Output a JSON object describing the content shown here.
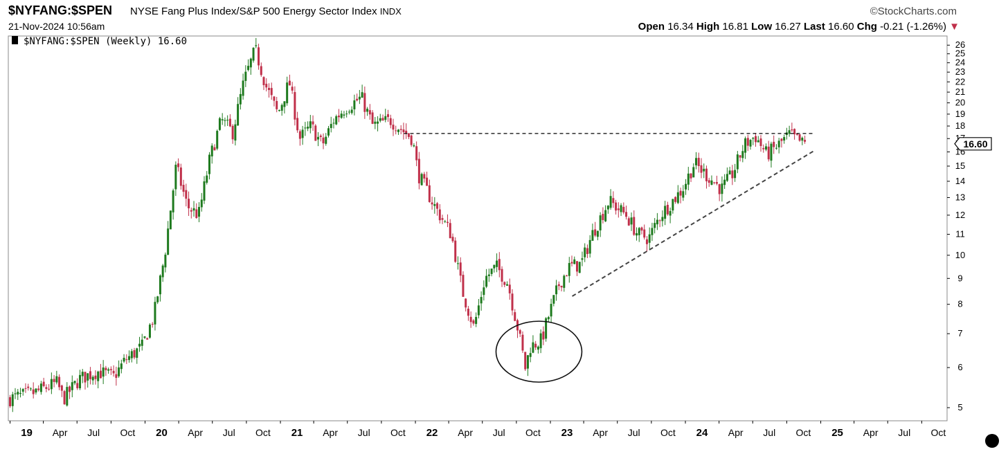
{
  "header": {
    "symbol": "$NYFANG:$SPEN",
    "description": "NYSE Fang Plus Index/S&P 500 Energy Sector Index",
    "exchange": "INDX",
    "brand": "©StockCharts.com",
    "datetime": "21-Nov-2024 10:56am",
    "quote": {
      "open_label": "Open",
      "open": "16.34",
      "high_label": "High",
      "high": "16.81",
      "low_label": "Low",
      "low": "16.27",
      "last_label": "Last",
      "last": "16.60",
      "chg_label": "Chg",
      "chg": "-0.21 (-1.26%)",
      "chg_arrow": "▼"
    }
  },
  "legend": {
    "text": "$NYFANG:$SPEN (Weekly) 16.60"
  },
  "chart_data": {
    "type": "candlestick",
    "title": "$NYFANG:$SPEN (Weekly) 16.60",
    "y_scale": "log",
    "ylim": [
      4.8,
      26.6
    ],
    "y_ticks": [
      "5",
      "6",
      "7",
      "8",
      "9",
      "10",
      "11",
      "12",
      "13",
      "14",
      "15",
      "16",
      "17",
      "18",
      "19",
      "20",
      "21",
      "22",
      "23",
      "24",
      "25",
      "26"
    ],
    "x_ticks": [
      {
        "label": "19",
        "bold": true
      },
      {
        "label": "Apr"
      },
      {
        "label": "Jul"
      },
      {
        "label": "Oct"
      },
      {
        "label": "20",
        "bold": true
      },
      {
        "label": "Apr"
      },
      {
        "label": "Jul"
      },
      {
        "label": "Oct"
      },
      {
        "label": "21",
        "bold": true
      },
      {
        "label": "Apr"
      },
      {
        "label": "Jul"
      },
      {
        "label": "Oct"
      },
      {
        "label": "22",
        "bold": true
      },
      {
        "label": "Apr"
      },
      {
        "label": "Jul"
      },
      {
        "label": "Oct"
      },
      {
        "label": "23",
        "bold": true
      },
      {
        "label": "Apr"
      },
      {
        "label": "Jul"
      },
      {
        "label": "Oct"
      },
      {
        "label": "24",
        "bold": true
      },
      {
        "label": "Apr"
      },
      {
        "label": "Jul"
      },
      {
        "label": "Oct"
      },
      {
        "label": "25",
        "bold": true
      },
      {
        "label": "Apr"
      },
      {
        "label": "Jul"
      },
      {
        "label": "Oct"
      }
    ],
    "x_range": [
      "2018-12-31",
      "2025-12-31"
    ],
    "last_value": "16.60",
    "up_color": "#1e7a1e",
    "down_color": "#c0304a",
    "price_anchors": [
      [
        "2019-01-01",
        5.2
      ],
      [
        "2019-03-15",
        5.35
      ],
      [
        "2019-05-15",
        5.6
      ],
      [
        "2019-06-01",
        5.2
      ],
      [
        "2019-07-15",
        5.7
      ],
      [
        "2019-09-01",
        5.9
      ],
      [
        "2019-10-15",
        5.75
      ],
      [
        "2019-11-15",
        6.2
      ],
      [
        "2019-12-31",
        6.6
      ],
      [
        "2020-02-01",
        7.6
      ],
      [
        "2020-03-01",
        10.0
      ],
      [
        "2020-04-01",
        15.0
      ],
      [
        "2020-05-01",
        12.5
      ],
      [
        "2020-06-01",
        12.0
      ],
      [
        "2020-07-01",
        15.5
      ],
      [
        "2020-08-01",
        18.5
      ],
      [
        "2020-09-01",
        17.5
      ],
      [
        "2020-10-01",
        22.0
      ],
      [
        "2020-11-01",
        25.5
      ],
      [
        "2020-12-01",
        21.5
      ],
      [
        "2021-01-01",
        19.0
      ],
      [
        "2021-02-01",
        22.0
      ],
      [
        "2021-03-01",
        17.0
      ],
      [
        "2021-04-01",
        18.0
      ],
      [
        "2021-05-01",
        16.5
      ],
      [
        "2021-06-01",
        18.5
      ],
      [
        "2021-07-01",
        19.5
      ],
      [
        "2021-08-15",
        20.5
      ],
      [
        "2021-09-15",
        18.0
      ],
      [
        "2021-11-01",
        18.5
      ],
      [
        "2021-12-31",
        17.0
      ],
      [
        "2022-01-15",
        14.5
      ],
      [
        "2022-03-01",
        12.5
      ],
      [
        "2022-04-15",
        11.0
      ],
      [
        "2022-05-15",
        8.5
      ],
      [
        "2022-06-15",
        7.2
      ],
      [
        "2022-07-15",
        9.0
      ],
      [
        "2022-08-15",
        9.5
      ],
      [
        "2022-09-15",
        8.8
      ],
      [
        "2022-10-15",
        7.0
      ],
      [
        "2022-11-01",
        6.0
      ],
      [
        "2022-11-15",
        6.6
      ],
      [
        "2022-12-15",
        6.8
      ],
      [
        "2023-01-01",
        7.5
      ],
      [
        "2023-02-01",
        8.8
      ],
      [
        "2023-03-01",
        9.5
      ],
      [
        "2023-04-01",
        9.6
      ],
      [
        "2023-05-01",
        11.0
      ],
      [
        "2023-06-15",
        12.8
      ],
      [
        "2023-08-01",
        12.0
      ],
      [
        "2023-09-01",
        11.0
      ],
      [
        "2023-10-01",
        10.8
      ],
      [
        "2023-11-01",
        12.0
      ],
      [
        "2023-12-31",
        13.5
      ],
      [
        "2024-02-01",
        15.2
      ],
      [
        "2024-03-01",
        14.5
      ],
      [
        "2024-04-15",
        13.5
      ],
      [
        "2024-05-15",
        14.5
      ],
      [
        "2024-06-15",
        16.5
      ],
      [
        "2024-07-15",
        17.2
      ],
      [
        "2024-08-15",
        15.8
      ],
      [
        "2024-09-15",
        16.5
      ],
      [
        "2024-10-15",
        17.3
      ],
      [
        "2024-11-21",
        16.6
      ]
    ],
    "annotations": [
      {
        "type": "horizontal-line",
        "style": "dashed",
        "y": 17.4,
        "from": "2021-12-01",
        "to": "2024-12-15"
      },
      {
        "type": "trendline",
        "style": "dashed",
        "from": [
          "2023-03-01",
          8.3
        ],
        "to": [
          "2024-12-15",
          16.1
        ]
      },
      {
        "type": "ellipse",
        "center": [
          "2022-12-01",
          6.45
        ],
        "note": "circled bottom"
      }
    ]
  }
}
